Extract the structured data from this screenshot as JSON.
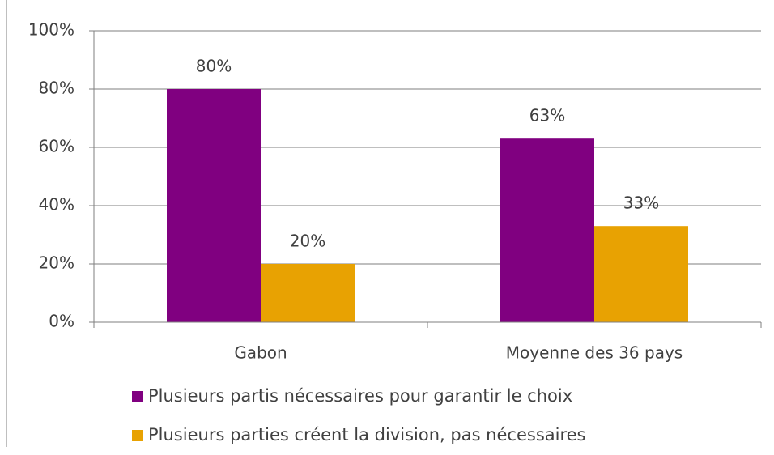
{
  "chart_data": {
    "type": "bar",
    "categories": [
      "Gabon",
      "Moyenne des 36 pays"
    ],
    "series": [
      {
        "name": "Plusieurs partis nécessaires pour garantir le choix",
        "color": "#800080",
        "values": [
          80,
          63
        ],
        "value_labels": [
          "80%",
          "63%"
        ]
      },
      {
        "name": "Plusieurs parties créent la division, pas nécessaires",
        "color": "#e8a202",
        "values": [
          20,
          33
        ],
        "value_labels": [
          "20%",
          "33%"
        ]
      }
    ],
    "ylim": [
      0,
      100
    ],
    "yticks": [
      {
        "value": 0,
        "label": "0%"
      },
      {
        "value": 20,
        "label": "20%"
      },
      {
        "value": 40,
        "label": "40%"
      },
      {
        "value": 60,
        "label": "60%"
      },
      {
        "value": 80,
        "label": "80%"
      },
      {
        "value": 100,
        "label": "100%"
      }
    ],
    "grid": true,
    "legend": "bottom"
  }
}
